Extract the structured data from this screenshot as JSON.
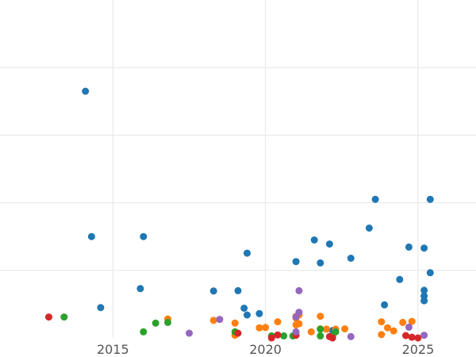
{
  "chart_data": {
    "type": "scatter",
    "title": "",
    "xlabel": "",
    "ylabel": "",
    "xlim": [
      2011.3,
      2026.9
    ],
    "ylim": [
      0,
      100
    ],
    "grid": true,
    "legend": "none",
    "x_ticks": [
      2015,
      2020,
      2025
    ],
    "x_tick_labels": [
      "2015",
      "2020",
      "2025"
    ],
    "y_ticks": [
      20,
      40,
      60,
      80
    ],
    "y_tick_labels": [],
    "series": [
      {
        "color": "#1f77b4",
        "points": [
          [
            2014.1,
            73.0
          ],
          [
            2014.3,
            30.0
          ],
          [
            2014.6,
            9.0
          ],
          [
            2015.9,
            14.6
          ],
          [
            2016.0,
            30.0
          ],
          [
            2018.3,
            13.9
          ],
          [
            2019.1,
            14.0
          ],
          [
            2019.3,
            8.8
          ],
          [
            2019.4,
            6.8
          ],
          [
            2019.4,
            25.1
          ],
          [
            2019.8,
            7.2
          ],
          [
            2021.0,
            22.6
          ],
          [
            2021.6,
            29.0
          ],
          [
            2021.8,
            22.2
          ],
          [
            2022.1,
            27.8
          ],
          [
            2022.8,
            23.6
          ],
          [
            2022.2,
            2.2
          ],
          [
            2023.4,
            32.5
          ],
          [
            2023.6,
            41.0
          ],
          [
            2023.9,
            9.8
          ],
          [
            2024.4,
            17.3
          ],
          [
            2024.7,
            26.9
          ],
          [
            2025.2,
            14.1
          ],
          [
            2025.2,
            26.6
          ],
          [
            2025.2,
            12.4
          ],
          [
            2025.2,
            11.0
          ],
          [
            2025.4,
            19.3
          ],
          [
            2025.4,
            41.0
          ]
        ]
      },
      {
        "color": "#ff7f0e",
        "points": [
          [
            2016.8,
            5.6
          ],
          [
            2018.3,
            5.2
          ],
          [
            2019.0,
            4.4
          ],
          [
            2019.0,
            0.8
          ],
          [
            2019.8,
            3.0
          ],
          [
            2020.0,
            3.1
          ],
          [
            2020.4,
            4.8
          ],
          [
            2021.0,
            5.9
          ],
          [
            2021.0,
            6.4
          ],
          [
            2021.0,
            3.9
          ],
          [
            2021.1,
            4.2
          ],
          [
            2021.1,
            6.8
          ],
          [
            2021.5,
            1.8
          ],
          [
            2021.8,
            6.4
          ],
          [
            2021.8,
            2.7
          ],
          [
            2022.0,
            2.6
          ],
          [
            2022.3,
            2.6
          ],
          [
            2022.6,
            2.7
          ],
          [
            2023.8,
            4.8
          ],
          [
            2024.0,
            3.0
          ],
          [
            2024.2,
            2.1
          ],
          [
            2024.5,
            4.6
          ],
          [
            2024.8,
            4.9
          ],
          [
            2023.8,
            1.0
          ]
        ]
      },
      {
        "color": "#2ca02c",
        "points": [
          [
            2013.4,
            6.2
          ],
          [
            2016.0,
            1.8
          ],
          [
            2016.4,
            4.4
          ],
          [
            2016.8,
            4.6
          ],
          [
            2019.0,
            1.8
          ],
          [
            2020.2,
            0.6
          ],
          [
            2020.6,
            0.6
          ],
          [
            2020.9,
            0.6
          ],
          [
            2021.8,
            2.6
          ],
          [
            2022.2,
            0.7
          ],
          [
            2022.3,
            1.8
          ],
          [
            2021.8,
            0.6
          ]
        ]
      },
      {
        "color": "#d62728",
        "points": [
          [
            2012.9,
            6.2
          ],
          [
            2019.1,
            1.4
          ],
          [
            2020.2,
            0
          ],
          [
            2020.4,
            0.9
          ],
          [
            2021.0,
            0.8
          ],
          [
            2022.1,
            0.4
          ],
          [
            2022.2,
            0
          ],
          [
            2024.6,
            0.7
          ],
          [
            2024.8,
            0.2
          ],
          [
            2025.0,
            0
          ]
        ]
      },
      {
        "color": "#9467bd",
        "points": [
          [
            2017.5,
            1.4
          ],
          [
            2018.5,
            5.5
          ],
          [
            2021.1,
            14.0
          ],
          [
            2021.1,
            7.6
          ],
          [
            2021.0,
            6.2
          ],
          [
            2021.0,
            1.8
          ],
          [
            2022.8,
            0.4
          ],
          [
            2024.7,
            3.2
          ],
          [
            2025.2,
            0.8
          ]
        ]
      }
    ]
  }
}
